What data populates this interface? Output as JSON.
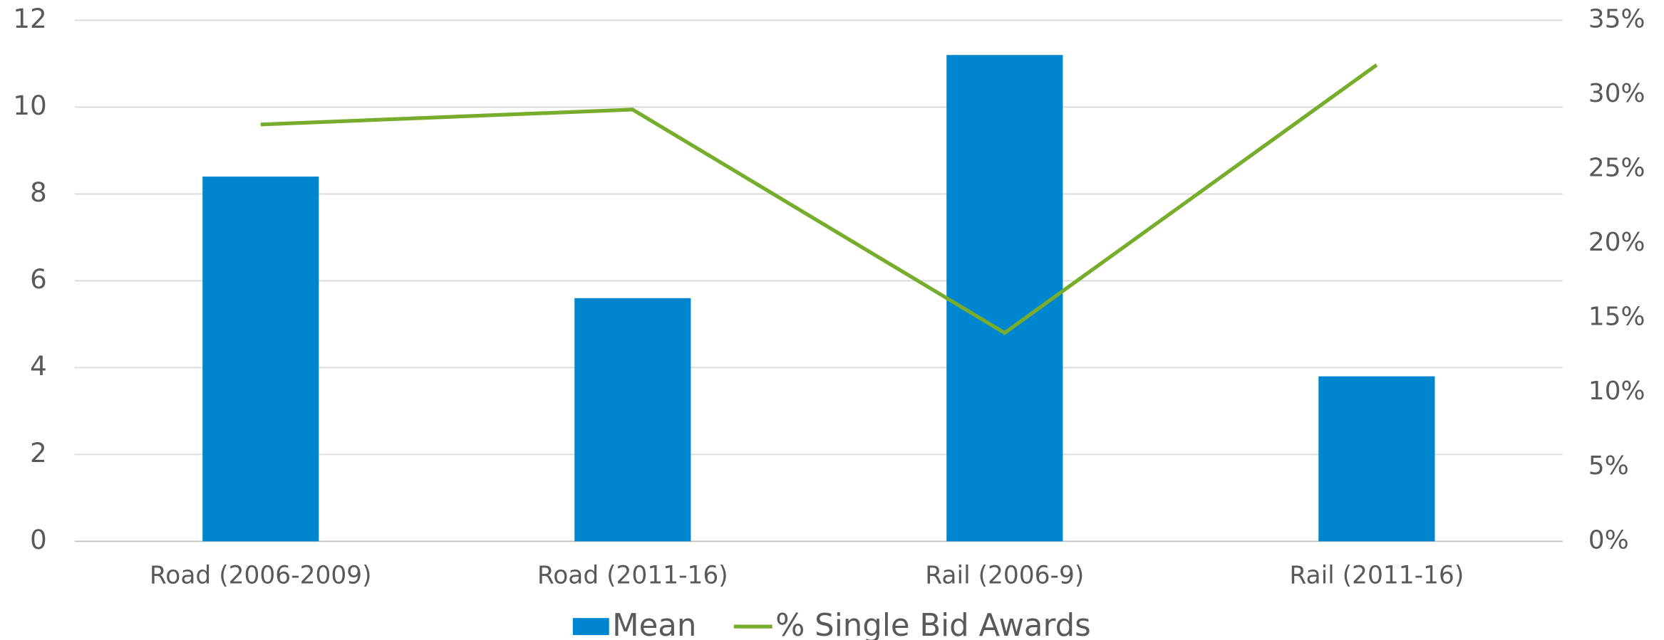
{
  "chart_data": {
    "type": "bar",
    "categories": [
      "Road (2006-2009)",
      "Road (2011-16)",
      "Rail (2006-9)",
      "Rail (2011-16)"
    ],
    "series": [
      {
        "name": "Mean",
        "type": "bar",
        "color": "#0085cf",
        "values": [
          8.4,
          5.6,
          11.2,
          3.8
        ]
      },
      {
        "name": "% Single Bid Awards",
        "type": "line",
        "axis": "y2",
        "color": "#77ac2c",
        "values": [
          28,
          29,
          14,
          32
        ]
      }
    ],
    "ylim": [
      0,
      12
    ],
    "yticks": [
      0,
      2,
      4,
      6,
      8,
      10,
      12
    ],
    "y2lim": [
      0,
      35
    ],
    "y2ticks": [
      {
        "value": 0,
        "label": "0%"
      },
      {
        "value": 5,
        "label": "5%"
      },
      {
        "value": 10,
        "label": "10%"
      },
      {
        "value": 15,
        "label": "15%"
      },
      {
        "value": 20,
        "label": "20%"
      },
      {
        "value": 25,
        "label": "25%"
      },
      {
        "value": 30,
        "label": "30%"
      },
      {
        "value": 35,
        "label": "35%"
      }
    ],
    "grid": true,
    "legend": "bottom"
  }
}
